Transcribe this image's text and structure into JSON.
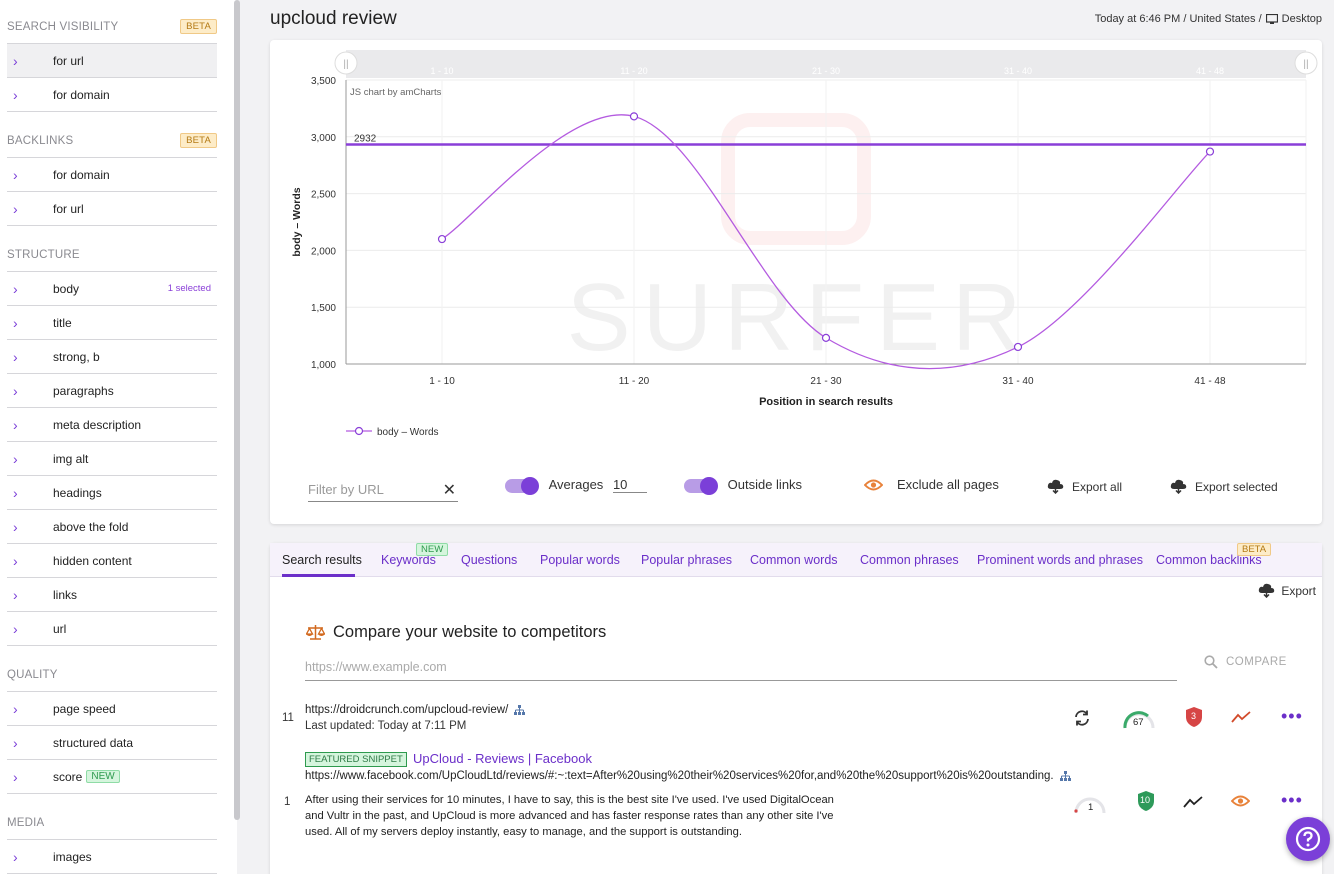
{
  "header": {
    "title": "upcloud review",
    "meta": "Today at 6:46 PM / United States /",
    "device": "Desktop"
  },
  "sidebar": {
    "sections": [
      {
        "title": "SEARCH VISIBILITY",
        "badge": "BETA",
        "items": [
          {
            "label": "for url"
          },
          {
            "label": "for domain"
          }
        ]
      },
      {
        "title": "BACKLINKS",
        "badge": "BETA",
        "items": [
          {
            "label": "for domain"
          },
          {
            "label": "for url"
          }
        ]
      },
      {
        "title": "STRUCTURE",
        "items": [
          {
            "label": "body",
            "selected": "1 selected"
          },
          {
            "label": "title"
          },
          {
            "label": "strong, b"
          },
          {
            "label": "paragraphs"
          },
          {
            "label": "meta description"
          },
          {
            "label": "img alt"
          },
          {
            "label": "headings"
          },
          {
            "label": "above the fold"
          },
          {
            "label": "hidden content"
          },
          {
            "label": "links"
          },
          {
            "label": "url"
          }
        ]
      },
      {
        "title": "QUALITY",
        "items": [
          {
            "label": "page speed"
          },
          {
            "label": "structured data"
          },
          {
            "label": "score",
            "badge": "NEW"
          }
        ]
      },
      {
        "title": "MEDIA",
        "items": [
          {
            "label": "images"
          }
        ]
      }
    ]
  },
  "chart_data": {
    "type": "line",
    "categories": [
      "1 - 10",
      "11 - 20",
      "21 - 30",
      "31 - 40",
      "41 - 48"
    ],
    "series": [
      {
        "name": "body – Words",
        "values": [
          2100,
          3180,
          1230,
          1150,
          2870
        ]
      }
    ],
    "average_line": {
      "value": 2932,
      "label": "2932"
    },
    "ylim": [
      1000,
      3500
    ],
    "yticks": [
      "1,000",
      "1,500",
      "2,000",
      "2,500",
      "3,000",
      "3,500"
    ],
    "ylabel": "body – Words",
    "xlabel": "Position in search results",
    "credit": "JS chart by amCharts",
    "watermark": "SURFER",
    "colors": {
      "series": "#b45be0",
      "average": "#8a3fd8"
    },
    "grid": true,
    "legend": "bottom-left"
  },
  "controls": {
    "filter_placeholder": "Filter by URL",
    "averages_label": "Averages",
    "averages_value": "10",
    "outside_links_label": "Outside links",
    "exclude_label": "Exclude all pages",
    "export_all": "Export all",
    "export_selected": "Export selected"
  },
  "tabs": [
    {
      "label": "Search results",
      "active": true
    },
    {
      "label": "Keywords",
      "badge": "NEW"
    },
    {
      "label": "Questions"
    },
    {
      "label": "Popular words"
    },
    {
      "label": "Popular phrases"
    },
    {
      "label": "Common words"
    },
    {
      "label": "Common phrases"
    },
    {
      "label": "Prominent words and phrases"
    },
    {
      "label": "Common backlinks",
      "badge": "BETA"
    }
  ],
  "results": {
    "export_label": "Export",
    "compare_title": "Compare your website to competitors",
    "compare_placeholder": "https://www.example.com",
    "compare_button": "COMPARE",
    "rows": [
      {
        "position": "11",
        "url": "https://droidcrunch.com/upcloud-review/",
        "updated": "Last updated: Today at 7:11 PM",
        "score": "67",
        "shield": "3"
      },
      {
        "position": "1",
        "featured": "FEATURED SNIPPET",
        "title": "UpCloud - Reviews | Facebook",
        "url": "https://www.facebook.com/UpCloudLtd/reviews/#:~:text=After%20using%20their%20services%20for,and%20the%20support%20is%20outstanding.",
        "snippet": "After using their services for 10 minutes, I have to say, this is the best site I've used. I've used DigitalOcean and Vultr in the past, and UpCloud is more advanced and has faster response rates than any other site I've used. All of my servers deploy instantly, easy to manage, and the support is outstanding.",
        "score": "1",
        "shield": "10"
      }
    ]
  }
}
